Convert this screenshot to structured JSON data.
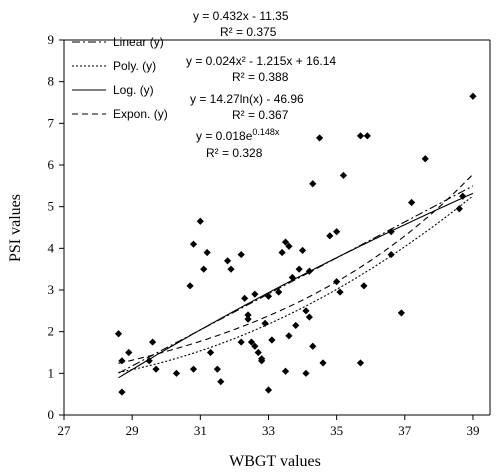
{
  "chart_data": {
    "type": "scatter",
    "xlabel": "WBGT values",
    "ylabel": "PSI values",
    "xlim": [
      27,
      39.5
    ],
    "ylim": [
      0,
      9
    ],
    "xticks": [
      27,
      29,
      31,
      33,
      35,
      37,
      39
    ],
    "yticks": [
      0,
      1,
      2,
      3,
      4,
      5,
      6,
      7,
      8,
      9
    ],
    "grid": false,
    "legend_position": "top-left",
    "points": [
      [
        28.6,
        1.95
      ],
      [
        28.7,
        0.55
      ],
      [
        28.7,
        1.3
      ],
      [
        28.9,
        1.5
      ],
      [
        29.5,
        1.3
      ],
      [
        29.6,
        1.75
      ],
      [
        29.7,
        1.1
      ],
      [
        30.3,
        1.0
      ],
      [
        30.7,
        3.1
      ],
      [
        30.8,
        4.1
      ],
      [
        30.8,
        1.1
      ],
      [
        31.0,
        4.65
      ],
      [
        31.1,
        3.5
      ],
      [
        31.2,
        3.9
      ],
      [
        31.3,
        1.5
      ],
      [
        31.5,
        1.1
      ],
      [
        31.6,
        0.8
      ],
      [
        31.8,
        3.7
      ],
      [
        31.9,
        3.5
      ],
      [
        32.2,
        1.75
      ],
      [
        32.2,
        3.85
      ],
      [
        32.3,
        2.8
      ],
      [
        32.4,
        2.4
      ],
      [
        32.4,
        2.3
      ],
      [
        32.5,
        1.75
      ],
      [
        32.6,
        1.65
      ],
      [
        32.6,
        2.9
      ],
      [
        32.7,
        1.5
      ],
      [
        32.8,
        1.3
      ],
      [
        32.8,
        1.35
      ],
      [
        32.9,
        2.2
      ],
      [
        33.0,
        0.6
      ],
      [
        33.0,
        2.85
      ],
      [
        33.1,
        1.8
      ],
      [
        33.3,
        2.95
      ],
      [
        33.4,
        3.9
      ],
      [
        33.5,
        4.15
      ],
      [
        33.5,
        1.05
      ],
      [
        33.6,
        4.05
      ],
      [
        33.6,
        1.9
      ],
      [
        33.7,
        3.3
      ],
      [
        33.8,
        2.15
      ],
      [
        33.9,
        3.5
      ],
      [
        34.0,
        3.95
      ],
      [
        34.1,
        2.5
      ],
      [
        34.1,
        1.0
      ],
      [
        34.2,
        3.45
      ],
      [
        34.2,
        2.35
      ],
      [
        34.3,
        5.55
      ],
      [
        34.3,
        1.65
      ],
      [
        34.5,
        6.65
      ],
      [
        34.6,
        1.25
      ],
      [
        34.8,
        4.3
      ],
      [
        35.0,
        4.4
      ],
      [
        35.0,
        3.2
      ],
      [
        35.1,
        2.95
      ],
      [
        35.2,
        5.75
      ],
      [
        35.7,
        6.7
      ],
      [
        35.7,
        1.25
      ],
      [
        35.8,
        3.1
      ],
      [
        35.9,
        6.7
      ],
      [
        36.6,
        3.85
      ],
      [
        36.6,
        4.4
      ],
      [
        36.9,
        2.45
      ],
      [
        37.2,
        5.1
      ],
      [
        37.6,
        6.15
      ],
      [
        38.6,
        4.95
      ],
      [
        38.7,
        5.25
      ],
      [
        39.0,
        7.65
      ]
    ],
    "legend": [
      {
        "label": "Linear (y)",
        "dash": "dashdot"
      },
      {
        "label": "Poly. (y)",
        "dash": "dotted"
      },
      {
        "label": "Log. (y)",
        "dash": "solid"
      },
      {
        "label": "Expon. (y)",
        "dash": "dashed"
      }
    ],
    "equations": [
      {
        "eq": "y = 0.432x - 11.35",
        "r2": "R² = 0.375"
      },
      {
        "eq": "y = 0.024x² - 1.215x + 16.14",
        "r2": "R² = 0.388"
      },
      {
        "eq": "y = 14.27ln(x) - 46.96",
        "r2": "R² = 0.367"
      },
      {
        "eq_prefix": "y = 0.018e",
        "eq_sup": "0.148x",
        "r2": "R² = 0.328"
      }
    ]
  }
}
